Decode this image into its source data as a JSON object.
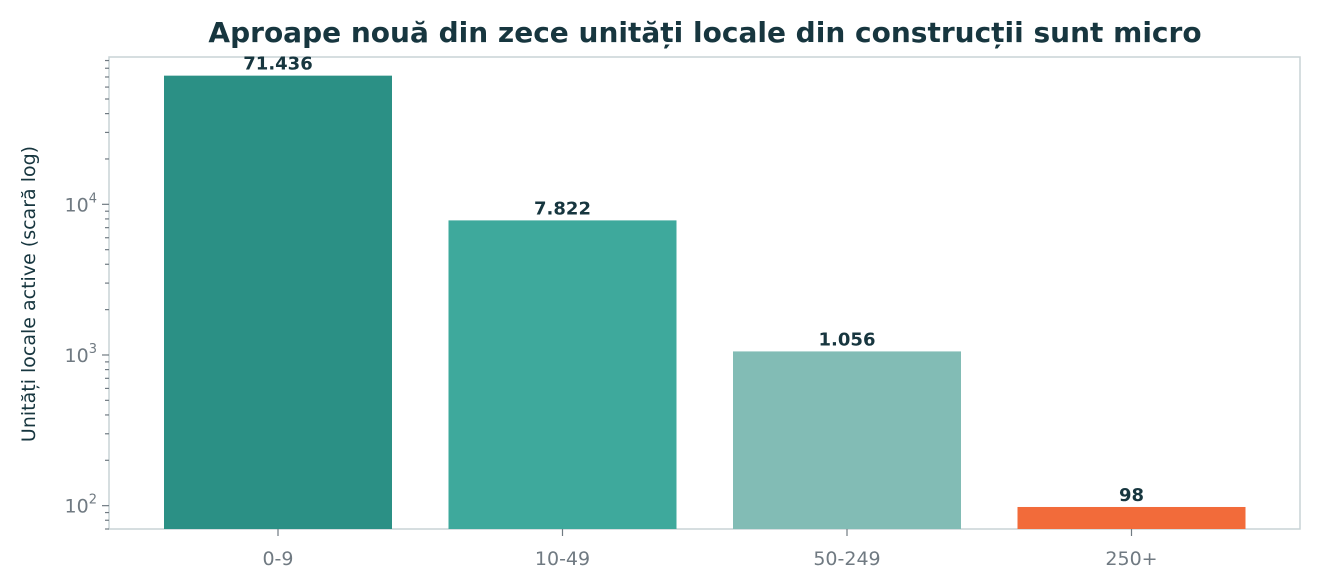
{
  "chart_data": {
    "type": "bar",
    "title": "Aproape nouă din zece unități locale din construcții sunt micro",
    "xlabel": "",
    "ylabel": "Unități locale active (scară log)",
    "yscale": "log",
    "ylim": [
      70,
      95000
    ],
    "grid": false,
    "categories": [
      "0-9",
      "10-49",
      "50-249",
      "250+"
    ],
    "values": [
      71436,
      7822,
      1056,
      98
    ],
    "value_labels": [
      "71.436",
      "7.822",
      "1.056",
      "98"
    ],
    "colors": [
      "#2b9085",
      "#3ea99c",
      "#82bcb5",
      "#f26b3a"
    ],
    "y_major_ticks": [
      {
        "value": 100,
        "base": "10",
        "exp": "2"
      },
      {
        "value": 1000,
        "base": "10",
        "exp": "3"
      },
      {
        "value": 10000,
        "base": "10",
        "exp": "4"
      }
    ]
  }
}
